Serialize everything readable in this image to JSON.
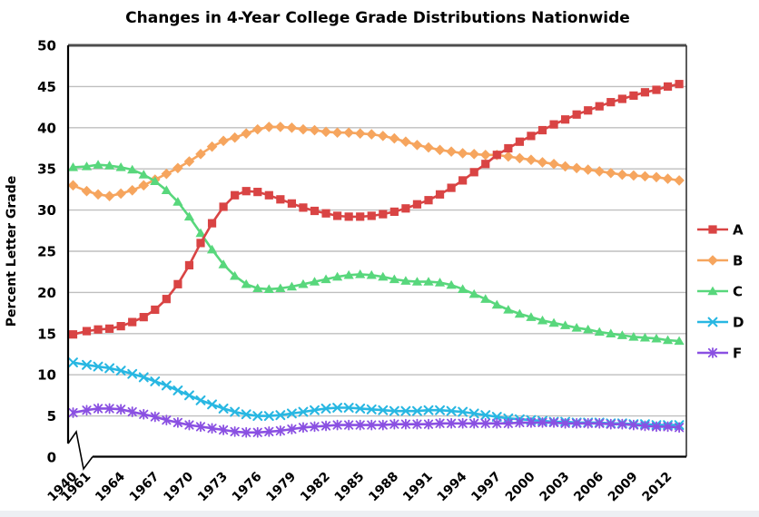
{
  "title": "Changes in 4-Year College Grade Distributions Nationwide",
  "y_axis": {
    "label": "Percent Letter Grade",
    "min": 0,
    "max": 50,
    "tick_step": 5,
    "ticks": [
      "0",
      "5",
      "10",
      "15",
      "20",
      "25",
      "30",
      "35",
      "40",
      "45",
      "50"
    ]
  },
  "x_axis": {
    "tick_labels": [
      "1940",
      "1961",
      "1964",
      "1967",
      "1970",
      "1973",
      "1976",
      "1979",
      "1982",
      "1985",
      "1988",
      "1991",
      "1994",
      "1997",
      "2000",
      "2003",
      "2006",
      "2009",
      "2012"
    ],
    "axis_break_between": [
      "1940",
      "1961"
    ]
  },
  "legend": {
    "position": "right",
    "items": [
      "A",
      "B",
      "C",
      "D",
      "F"
    ]
  },
  "colors": {
    "grade_a": "#d94444",
    "grade_b": "#f6a55e",
    "grade_c": "#58d77c",
    "grade_d": "#28b7e2",
    "grade_f": "#8a50e2",
    "gridline": "#bfbfbf"
  },
  "chart_data": {
    "type": "line",
    "title": "Changes in 4-Year College Grade Distributions Nationwide",
    "xlabel": "",
    "ylabel": "Percent Letter Grade",
    "ylim": [
      0,
      50
    ],
    "grid": "horizontal",
    "legend_position": "right",
    "x_note": "axis break between 1940 and 1961; yearly data 1961-2013",
    "x_years": [
      1940,
      1961,
      1962,
      1963,
      1964,
      1965,
      1966,
      1967,
      1968,
      1969,
      1970,
      1971,
      1972,
      1973,
      1974,
      1975,
      1976,
      1977,
      1978,
      1979,
      1980,
      1981,
      1982,
      1983,
      1984,
      1985,
      1986,
      1987,
      1988,
      1989,
      1990,
      1991,
      1992,
      1993,
      1994,
      1995,
      1996,
      1997,
      1998,
      1999,
      2000,
      2001,
      2002,
      2003,
      2004,
      2005,
      2006,
      2007,
      2008,
      2009,
      2010,
      2011,
      2012,
      2013
    ],
    "series": [
      {
        "name": "A",
        "marker": "square",
        "color": "#d94444",
        "values": [
          14.9,
          15.3,
          15.5,
          15.6,
          15.9,
          16.4,
          17.0,
          17.9,
          19.2,
          21.0,
          23.3,
          26.0,
          28.4,
          30.4,
          31.8,
          32.3,
          32.2,
          31.8,
          31.3,
          30.8,
          30.3,
          29.9,
          29.6,
          29.3,
          29.2,
          29.2,
          29.3,
          29.5,
          29.8,
          30.2,
          30.7,
          31.2,
          31.9,
          32.7,
          33.6,
          34.6,
          35.6,
          36.7,
          37.5,
          38.3,
          39.0,
          39.7,
          40.4,
          41.0,
          41.6,
          42.1,
          42.6,
          43.1,
          43.5,
          43.9,
          44.3,
          44.6,
          45.0,
          45.3
        ]
      },
      {
        "name": "B",
        "marker": "diamond",
        "color": "#f6a55e",
        "values": [
          33.0,
          32.3,
          31.9,
          31.7,
          32.0,
          32.4,
          33.0,
          33.7,
          34.4,
          35.1,
          35.9,
          36.8,
          37.7,
          38.4,
          38.8,
          39.3,
          39.8,
          40.1,
          40.1,
          40.0,
          39.8,
          39.7,
          39.5,
          39.4,
          39.4,
          39.3,
          39.2,
          39.0,
          38.7,
          38.3,
          37.9,
          37.6,
          37.3,
          37.1,
          36.9,
          36.8,
          36.7,
          36.7,
          36.5,
          36.3,
          36.1,
          35.8,
          35.6,
          35.3,
          35.1,
          34.9,
          34.7,
          34.5,
          34.3,
          34.2,
          34.1,
          34.0,
          33.8,
          33.6
        ]
      },
      {
        "name": "C",
        "marker": "triangle",
        "color": "#58d77c",
        "values": [
          35.2,
          35.3,
          35.5,
          35.4,
          35.2,
          34.9,
          34.3,
          33.5,
          32.4,
          31.0,
          29.2,
          27.2,
          25.2,
          23.4,
          22.0,
          21.0,
          20.5,
          20.4,
          20.5,
          20.7,
          21.0,
          21.3,
          21.6,
          21.9,
          22.1,
          22.2,
          22.1,
          21.9,
          21.6,
          21.4,
          21.3,
          21.3,
          21.2,
          20.9,
          20.4,
          19.8,
          19.2,
          18.5,
          17.9,
          17.4,
          17.0,
          16.6,
          16.3,
          16.0,
          15.7,
          15.5,
          15.2,
          15.0,
          14.8,
          14.6,
          14.5,
          14.4,
          14.2,
          14.1
        ]
      },
      {
        "name": "D",
        "marker": "x",
        "color": "#28b7e2",
        "values": [
          11.5,
          11.2,
          11.0,
          10.8,
          10.5,
          10.1,
          9.7,
          9.2,
          8.7,
          8.1,
          7.5,
          6.9,
          6.4,
          5.9,
          5.5,
          5.2,
          5.0,
          5.0,
          5.1,
          5.3,
          5.5,
          5.7,
          5.9,
          6.0,
          6.0,
          5.9,
          5.8,
          5.7,
          5.6,
          5.6,
          5.6,
          5.7,
          5.7,
          5.6,
          5.5,
          5.3,
          5.1,
          4.9,
          4.7,
          4.6,
          4.5,
          4.4,
          4.3,
          4.3,
          4.2,
          4.2,
          4.2,
          4.1,
          4.1,
          4.0,
          4.0,
          3.9,
          3.9,
          3.9
        ]
      },
      {
        "name": "F",
        "marker": "asterisk",
        "color": "#8a50e2",
        "values": [
          5.4,
          5.7,
          5.9,
          5.9,
          5.8,
          5.5,
          5.2,
          4.9,
          4.5,
          4.2,
          3.9,
          3.7,
          3.5,
          3.3,
          3.1,
          3.0,
          3.0,
          3.1,
          3.2,
          3.4,
          3.6,
          3.7,
          3.8,
          3.9,
          3.9,
          3.9,
          3.9,
          3.9,
          4.0,
          4.0,
          4.0,
          4.0,
          4.1,
          4.1,
          4.1,
          4.1,
          4.1,
          4.1,
          4.1,
          4.2,
          4.2,
          4.2,
          4.2,
          4.1,
          4.1,
          4.1,
          4.1,
          4.0,
          4.0,
          3.9,
          3.8,
          3.7,
          3.7,
          3.6
        ]
      }
    ]
  }
}
